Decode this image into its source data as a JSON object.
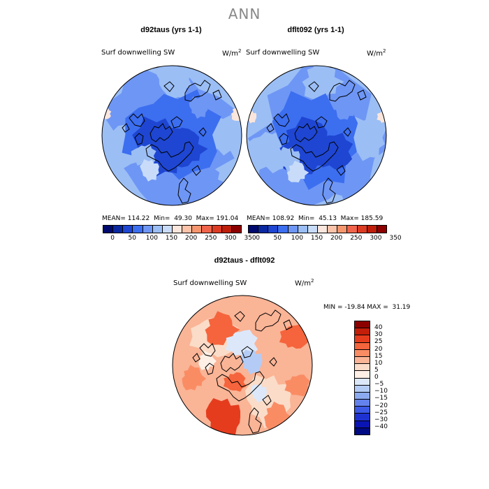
{
  "title": "ANN",
  "panels": [
    {
      "title": "d92taus (yrs 1-1)",
      "variable": "Surf downwelling SW",
      "units": "W/m",
      "units_sup": "2",
      "stats": "MEAN= 114.22  Min=  49.30  Max= 191.04"
    },
    {
      "title": "dflt092 (yrs 1-1)",
      "variable": "Surf downwelling SW",
      "units": "W/m",
      "units_sup": "2",
      "stats": "MEAN= 108.92  Min=  45.13  Max= 185.59"
    },
    {
      "title": "d92taus - dflt092",
      "variable": "Surf downwelling SW",
      "units": "W/m",
      "units_sup": "2",
      "stats": "MIN = -19.84 MAX =  31.19"
    }
  ],
  "abs_colorbar": {
    "colors": [
      "#000a6e",
      "#0a28a0",
      "#1e46d2",
      "#3c6ef0",
      "#6e96f5",
      "#9bbef5",
      "#c8dcfa",
      "#fae6dc",
      "#fac3aa",
      "#f5966e",
      "#f0644b",
      "#dc3c23",
      "#be1e0a",
      "#8c0000"
    ],
    "ticks": [
      "0",
      "50",
      "100",
      "150",
      "200",
      "250",
      "300",
      "350"
    ]
  },
  "diff_colorbar": {
    "colors_top_to_bottom": [
      "#8c0000",
      "#c31e0a",
      "#e63c1e",
      "#f5643c",
      "#fa8c64",
      "#fab496",
      "#fadcc8",
      "#fff0e6",
      "#dce8fa",
      "#b4ccf5",
      "#8caaf0",
      "#6482eb",
      "#3c5ae6",
      "#1e32d2",
      "#0a14b4",
      "#000a82"
    ],
    "ticks": [
      "40",
      "30",
      "25",
      "20",
      "15",
      "10",
      "5",
      "0",
      "−5",
      "−10",
      "−15",
      "−20",
      "−25",
      "−30",
      "−40"
    ]
  }
}
